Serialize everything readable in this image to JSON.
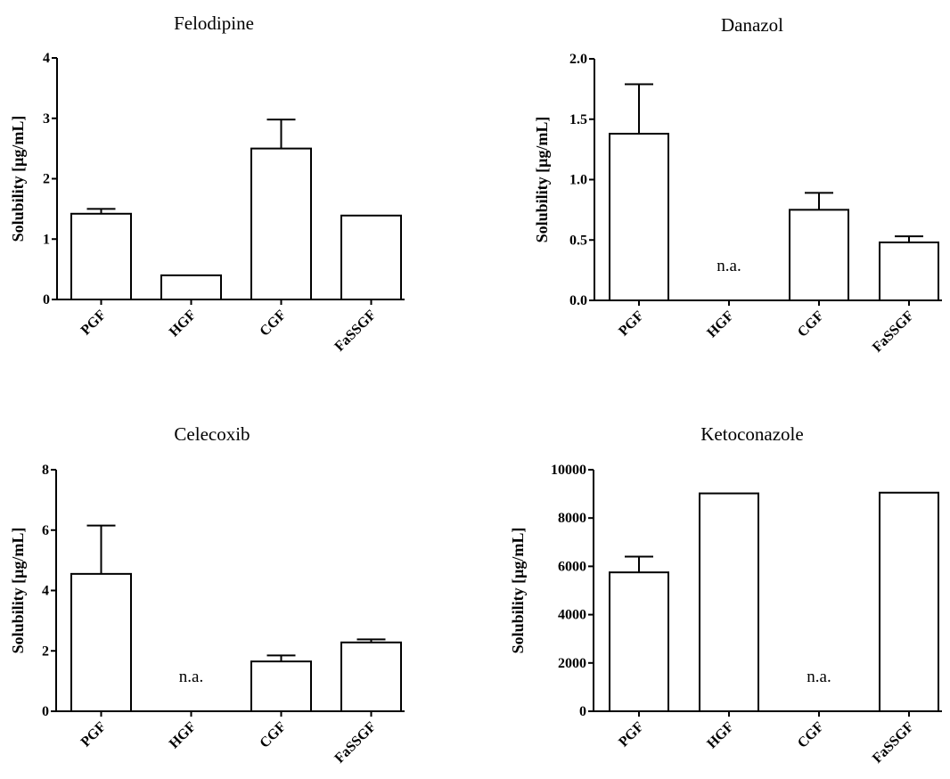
{
  "chart_data": [
    {
      "type": "bar",
      "title": "Felodipine",
      "ylabel": "Solubility [μg/mL]",
      "categories": [
        "PGF",
        "HGF",
        "CGF",
        "FaSSGF"
      ],
      "values": [
        1.42,
        0.4,
        2.5,
        1.39
      ],
      "errors": [
        0.08,
        null,
        0.48,
        null
      ],
      "ylim": [
        0,
        4
      ],
      "yticks": [
        "0",
        "1",
        "2",
        "3",
        "4"
      ],
      "annotations": []
    },
    {
      "type": "bar",
      "title": "Danazol",
      "ylabel": "Solubility [μg/mL]",
      "categories": [
        "PGF",
        "HGF",
        "CGF",
        "FaSSGF"
      ],
      "values": [
        1.38,
        null,
        0.75,
        0.48
      ],
      "errors": [
        0.41,
        null,
        0.14,
        0.05
      ],
      "ylim": [
        0,
        2
      ],
      "yticks": [
        "0.0",
        "0.5",
        "1.0",
        "1.5",
        "2.0"
      ],
      "annotations": [
        {
          "category": "HGF",
          "text": "n.a."
        }
      ]
    },
    {
      "type": "bar",
      "title": "Celecoxib",
      "ylabel": "Solubility [μg/mL]",
      "categories": [
        "PGF",
        "HGF",
        "CGF",
        "FaSSGF"
      ],
      "values": [
        4.55,
        null,
        1.65,
        2.28
      ],
      "errors": [
        1.6,
        null,
        0.2,
        0.1
      ],
      "ylim": [
        0,
        8
      ],
      "yticks": [
        "0",
        "2",
        "4",
        "6",
        "8"
      ],
      "annotations": [
        {
          "category": "HGF",
          "text": "n.a."
        }
      ]
    },
    {
      "type": "bar",
      "title": "Ketoconazole",
      "ylabel": "Solubility [μg/mL]",
      "categories": [
        "PGF",
        "HGF",
        "CGF",
        "FaSSGF"
      ],
      "values": [
        5750,
        9020,
        null,
        9050
      ],
      "errors": [
        650,
        null,
        null,
        null
      ],
      "ylim": [
        0,
        10000
      ],
      "yticks": [
        "0",
        "2000",
        "4000",
        "6000",
        "8000",
        "10000"
      ],
      "annotations": [
        {
          "category": "CGF",
          "text": "n.a."
        }
      ]
    }
  ]
}
